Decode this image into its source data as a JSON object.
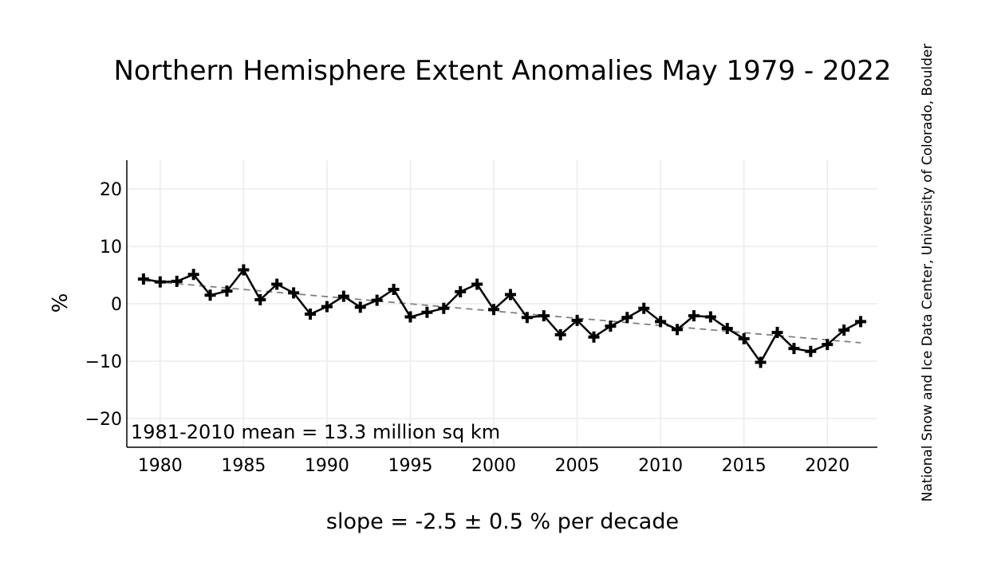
{
  "chart_data": {
    "type": "line",
    "title": "Northern Hemisphere Extent Anomalies May 1979 - 2022",
    "xlabel": "",
    "ylabel": "%",
    "xlim": [
      1978,
      2023
    ],
    "ylim": [
      -25,
      25
    ],
    "x_ticks": [
      1980,
      1985,
      1990,
      1995,
      2000,
      2005,
      2010,
      2015,
      2020
    ],
    "y_ticks": [
      20,
      10,
      0,
      -10,
      -20
    ],
    "y_tick_labels": [
      "20",
      "10",
      "0",
      "−10",
      "−20"
    ],
    "grid": true,
    "annotation": "1981-2010 mean = 13.3 million sq km",
    "slope_text": "slope = -2.5 ± 0.5 % per decade",
    "credit": "National Snow and Ice Data Center, University of Colorado, Boulder",
    "series": [
      {
        "x": [
          1979,
          1980,
          1981,
          1982,
          1983,
          1984,
          1985,
          1986,
          1987,
          1988,
          1989,
          1990,
          1991,
          1992,
          1993,
          1994,
          1995,
          1996,
          1997,
          1998,
          1999,
          2000,
          2001,
          2002,
          2003,
          2004,
          2005,
          2006,
          2007,
          2008,
          2009,
          2010,
          2011,
          2012,
          2013,
          2014,
          2015,
          2016,
          2017,
          2018,
          2019,
          2020,
          2021,
          2022
        ],
        "values": [
          4.3,
          3.8,
          3.9,
          5.1,
          1.5,
          2.2,
          5.9,
          0.7,
          3.4,
          1.9,
          -1.8,
          -0.5,
          1.3,
          -0.6,
          0.6,
          2.5,
          -2.3,
          -1.5,
          -0.8,
          2.1,
          3.4,
          -1.0,
          1.6,
          -2.4,
          -2.1,
          -5.4,
          -2.9,
          -5.8,
          -3.9,
          -2.4,
          -0.8,
          -3.1,
          -4.5,
          -2.1,
          -2.3,
          -4.3,
          -6.1,
          -10.2,
          -5.0,
          -7.8,
          -8.3,
          -7.1,
          -4.6,
          -3.1
        ],
        "color": "#000000"
      }
    ],
    "trend": {
      "x": [
        1979,
        2022
      ],
      "values": [
        4.0,
        -6.8
      ],
      "color": "#808080"
    },
    "colors": {
      "grid": "#ebebeb",
      "axis": "#000000"
    }
  }
}
